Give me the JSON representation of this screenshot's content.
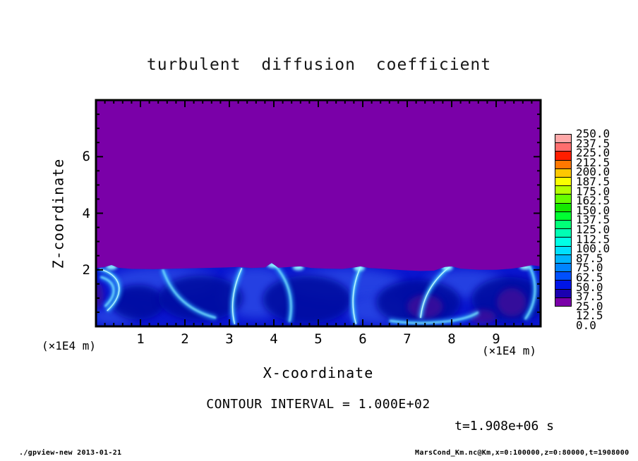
{
  "page": {
    "background": "#ffffff"
  },
  "chart_data": {
    "type": "heatmap",
    "title": "turbulent diffusion coefficient",
    "xlabel": "X-coordinate",
    "ylabel": "Z-coordinate",
    "x_unit_label": "(×1E4 m)",
    "z_unit_label": "(×1E4 m)",
    "x_range": [
      0,
      10
    ],
    "z_range": [
      0,
      8
    ],
    "x_major_ticks": [
      "1",
      "2",
      "3",
      "4",
      "5",
      "6",
      "7",
      "8",
      "9"
    ],
    "x_minor_step": 0.2,
    "z_major_ticks": [
      "2",
      "4",
      "6"
    ],
    "z_minor_step": 0.5,
    "contour_interval_label": "CONTOUR INTERVAL = 1.000E+02",
    "time_label": "t=1.908e+06 s",
    "colorbar": {
      "min": 0.0,
      "max": 250.0,
      "step": 12.5,
      "tick_labels": [
        "250.0",
        "237.5",
        "225.0",
        "212.5",
        "200.0",
        "187.5",
        "175.0",
        "162.5",
        "150.0",
        "137.5",
        "125.0",
        "112.5",
        "100.0",
        "87.5",
        "75.0",
        "62.5",
        "50.0",
        "37.5",
        "25.0",
        "12.5",
        "0.0"
      ],
      "colors_low_to_high": [
        "#7A00A8",
        "#1A00B0",
        "#0014E6",
        "#0050FF",
        "#0084FF",
        "#00B4FF",
        "#00E0FF",
        "#00FFE6",
        "#00FFB4",
        "#00FF78",
        "#00FF32",
        "#14E800",
        "#64FF00",
        "#B4FF00",
        "#FAFF00",
        "#FFC800",
        "#FF7800",
        "#FF1E00",
        "#FF6E6E",
        "#FFA8A8"
      ]
    },
    "field": {
      "description": "Quiescent region (value 0-12.5) above z=2e4 m; turbulent mixed layer with eddies below",
      "upper_region_value_range": [
        0,
        12.5
      ],
      "layer_top_z": 2.0,
      "colors": {
        "upper_purple": "#7A00A8",
        "layer_base": "#0A16D0",
        "eddy_dark": "#0208A0",
        "mid_blue": "#2E4FE8",
        "purple_patch": "#3D0D9A",
        "filament": "#2FA8FF",
        "filament_core": "#7FE8FF",
        "filament_bright": "#D0FFFF",
        "striation": "#4668F0",
        "spot": "#96FFFF"
      },
      "boundary": [
        [
          0,
          2.06
        ],
        [
          0.2,
          2.1
        ],
        [
          0.35,
          2.17
        ],
        [
          0.5,
          2.07
        ],
        [
          0.8,
          2.03
        ],
        [
          1.3,
          2.02
        ],
        [
          1.8,
          2.04
        ],
        [
          2.4,
          2.06
        ],
        [
          2.9,
          2.08
        ],
        [
          3.2,
          2.1
        ],
        [
          3.5,
          2.06
        ],
        [
          3.8,
          2.08
        ],
        [
          3.95,
          2.24
        ],
        [
          4.1,
          2.07
        ],
        [
          4.35,
          2.1
        ],
        [
          4.6,
          2.12
        ],
        [
          4.85,
          2.06
        ],
        [
          5.2,
          2.04
        ],
        [
          5.55,
          2.03
        ],
        [
          5.8,
          2.08
        ],
        [
          5.95,
          2.12
        ],
        [
          6.15,
          2.06
        ],
        [
          6.5,
          2.03
        ],
        [
          6.9,
          1.99
        ],
        [
          7.3,
          1.96
        ],
        [
          7.6,
          1.97
        ],
        [
          7.85,
          2.1
        ],
        [
          8.0,
          2.12
        ],
        [
          8.2,
          2.04
        ],
        [
          8.6,
          2.0
        ],
        [
          9.0,
          2.0
        ],
        [
          9.35,
          2.04
        ],
        [
          9.6,
          2.1
        ],
        [
          9.8,
          2.16
        ],
        [
          10,
          2.12
        ]
      ],
      "mid_blobs": [
        {
          "cx": 1.5,
          "cz": 1.6,
          "rx": 1.2,
          "rz": 0.5
        },
        {
          "cx": 3.6,
          "cz": 1.2,
          "rx": 0.8,
          "rz": 0.9
        },
        {
          "cx": 5.6,
          "cz": 1.5,
          "rx": 1.3,
          "rz": 0.55
        },
        {
          "cx": 6.3,
          "cz": 0.6,
          "rx": 0.7,
          "rz": 0.5
        },
        {
          "cx": 8.3,
          "cz": 1.5,
          "rx": 0.9,
          "rz": 0.5
        },
        {
          "cx": 0.4,
          "cz": 0.35,
          "rx": 0.5,
          "rz": 0.3
        }
      ],
      "eddies": [
        {
          "cx": 0.95,
          "cz": 0.85,
          "rx": 0.6,
          "rz": 0.62
        },
        {
          "cx": 2.35,
          "cz": 1.0,
          "rx": 0.95,
          "rz": 0.8
        },
        {
          "cx": 4.75,
          "cz": 0.95,
          "rx": 1.0,
          "rz": 0.85
        },
        {
          "cx": 7.25,
          "cz": 0.85,
          "rx": 0.95,
          "rz": 0.8
        },
        {
          "cx": 9.3,
          "cz": 0.95,
          "rx": 0.85,
          "rz": 0.8
        }
      ],
      "purple_patches": [
        {
          "cx": 7.4,
          "cz": 0.7,
          "rx": 0.4,
          "rz": 0.42
        },
        {
          "cx": 9.35,
          "cz": 0.85,
          "rx": 0.33,
          "rz": 0.5
        },
        {
          "cx": 8.7,
          "cz": 0.35,
          "rx": 0.3,
          "rz": 0.25
        },
        {
          "cx": 0.04,
          "cz": 1.1,
          "rx": 0.13,
          "rz": 0.45
        }
      ],
      "filaments": [
        {
          "pts": [
            [
              0.08,
              2.02
            ],
            [
              0.55,
              1.85
            ],
            [
              0.7,
              1.2
            ],
            [
              0.25,
              0.55
            ]
          ],
          "bright": true
        },
        {
          "pts": [
            [
              0.1,
              1.75
            ],
            [
              0.45,
              1.6
            ],
            [
              0.5,
              1.15
            ],
            [
              0.2,
              0.7
            ]
          ],
          "bright": false
        },
        {
          "pts": [
            [
              1.5,
              2.02
            ],
            [
              1.65,
              1.35
            ],
            [
              1.95,
              0.6
            ],
            [
              2.7,
              0.3
            ]
          ],
          "bright": false
        },
        {
          "pts": [
            [
              3.28,
              2.06
            ],
            [
              3.12,
              1.5
            ],
            [
              3.0,
              0.8
            ],
            [
              3.12,
              0.08
            ]
          ],
          "bright": true
        },
        {
          "pts": [
            [
              4.0,
              2.2
            ],
            [
              4.35,
              1.6
            ],
            [
              4.45,
              0.9
            ],
            [
              4.35,
              0.15
            ]
          ],
          "bright": false
        },
        {
          "pts": [
            [
              5.95,
              2.1
            ],
            [
              5.78,
              1.5
            ],
            [
              5.72,
              0.8
            ],
            [
              5.85,
              0.08
            ]
          ],
          "bright": true
        },
        {
          "pts": [
            [
              7.95,
              2.1
            ],
            [
              7.55,
              1.6
            ],
            [
              7.35,
              1.0
            ],
            [
              7.3,
              0.3
            ]
          ],
          "bright": true
        },
        {
          "pts": [
            [
              9.75,
              2.12
            ],
            [
              9.95,
              1.5
            ],
            [
              9.9,
              0.8
            ],
            [
              9.65,
              0.25
            ]
          ],
          "bright": false
        },
        {
          "pts": [
            [
              6.6,
              0.2
            ],
            [
              7.2,
              0.05
            ],
            [
              8.2,
              0.1
            ],
            [
              8.6,
              0.5
            ]
          ],
          "bright": false
        }
      ],
      "striations": {
        "z": [
          1.72,
          1.8,
          1.88,
          1.96
        ],
        "x_from": 2.0,
        "x_to": 4.3
      },
      "bright_spots": [
        [
          0.35,
          2.1
        ],
        [
          3.97,
          2.17
        ],
        [
          5.92,
          2.06
        ],
        [
          7.9,
          2.08
        ],
        [
          9.65,
          2.1
        ],
        [
          4.55,
          2.08
        ]
      ]
    }
  },
  "footer": {
    "left": "./gpview-new  2013-01-21",
    "right": "MarsCond_Km.nc@Km,x=0:100000,z=0:80000,t=1908000"
  }
}
